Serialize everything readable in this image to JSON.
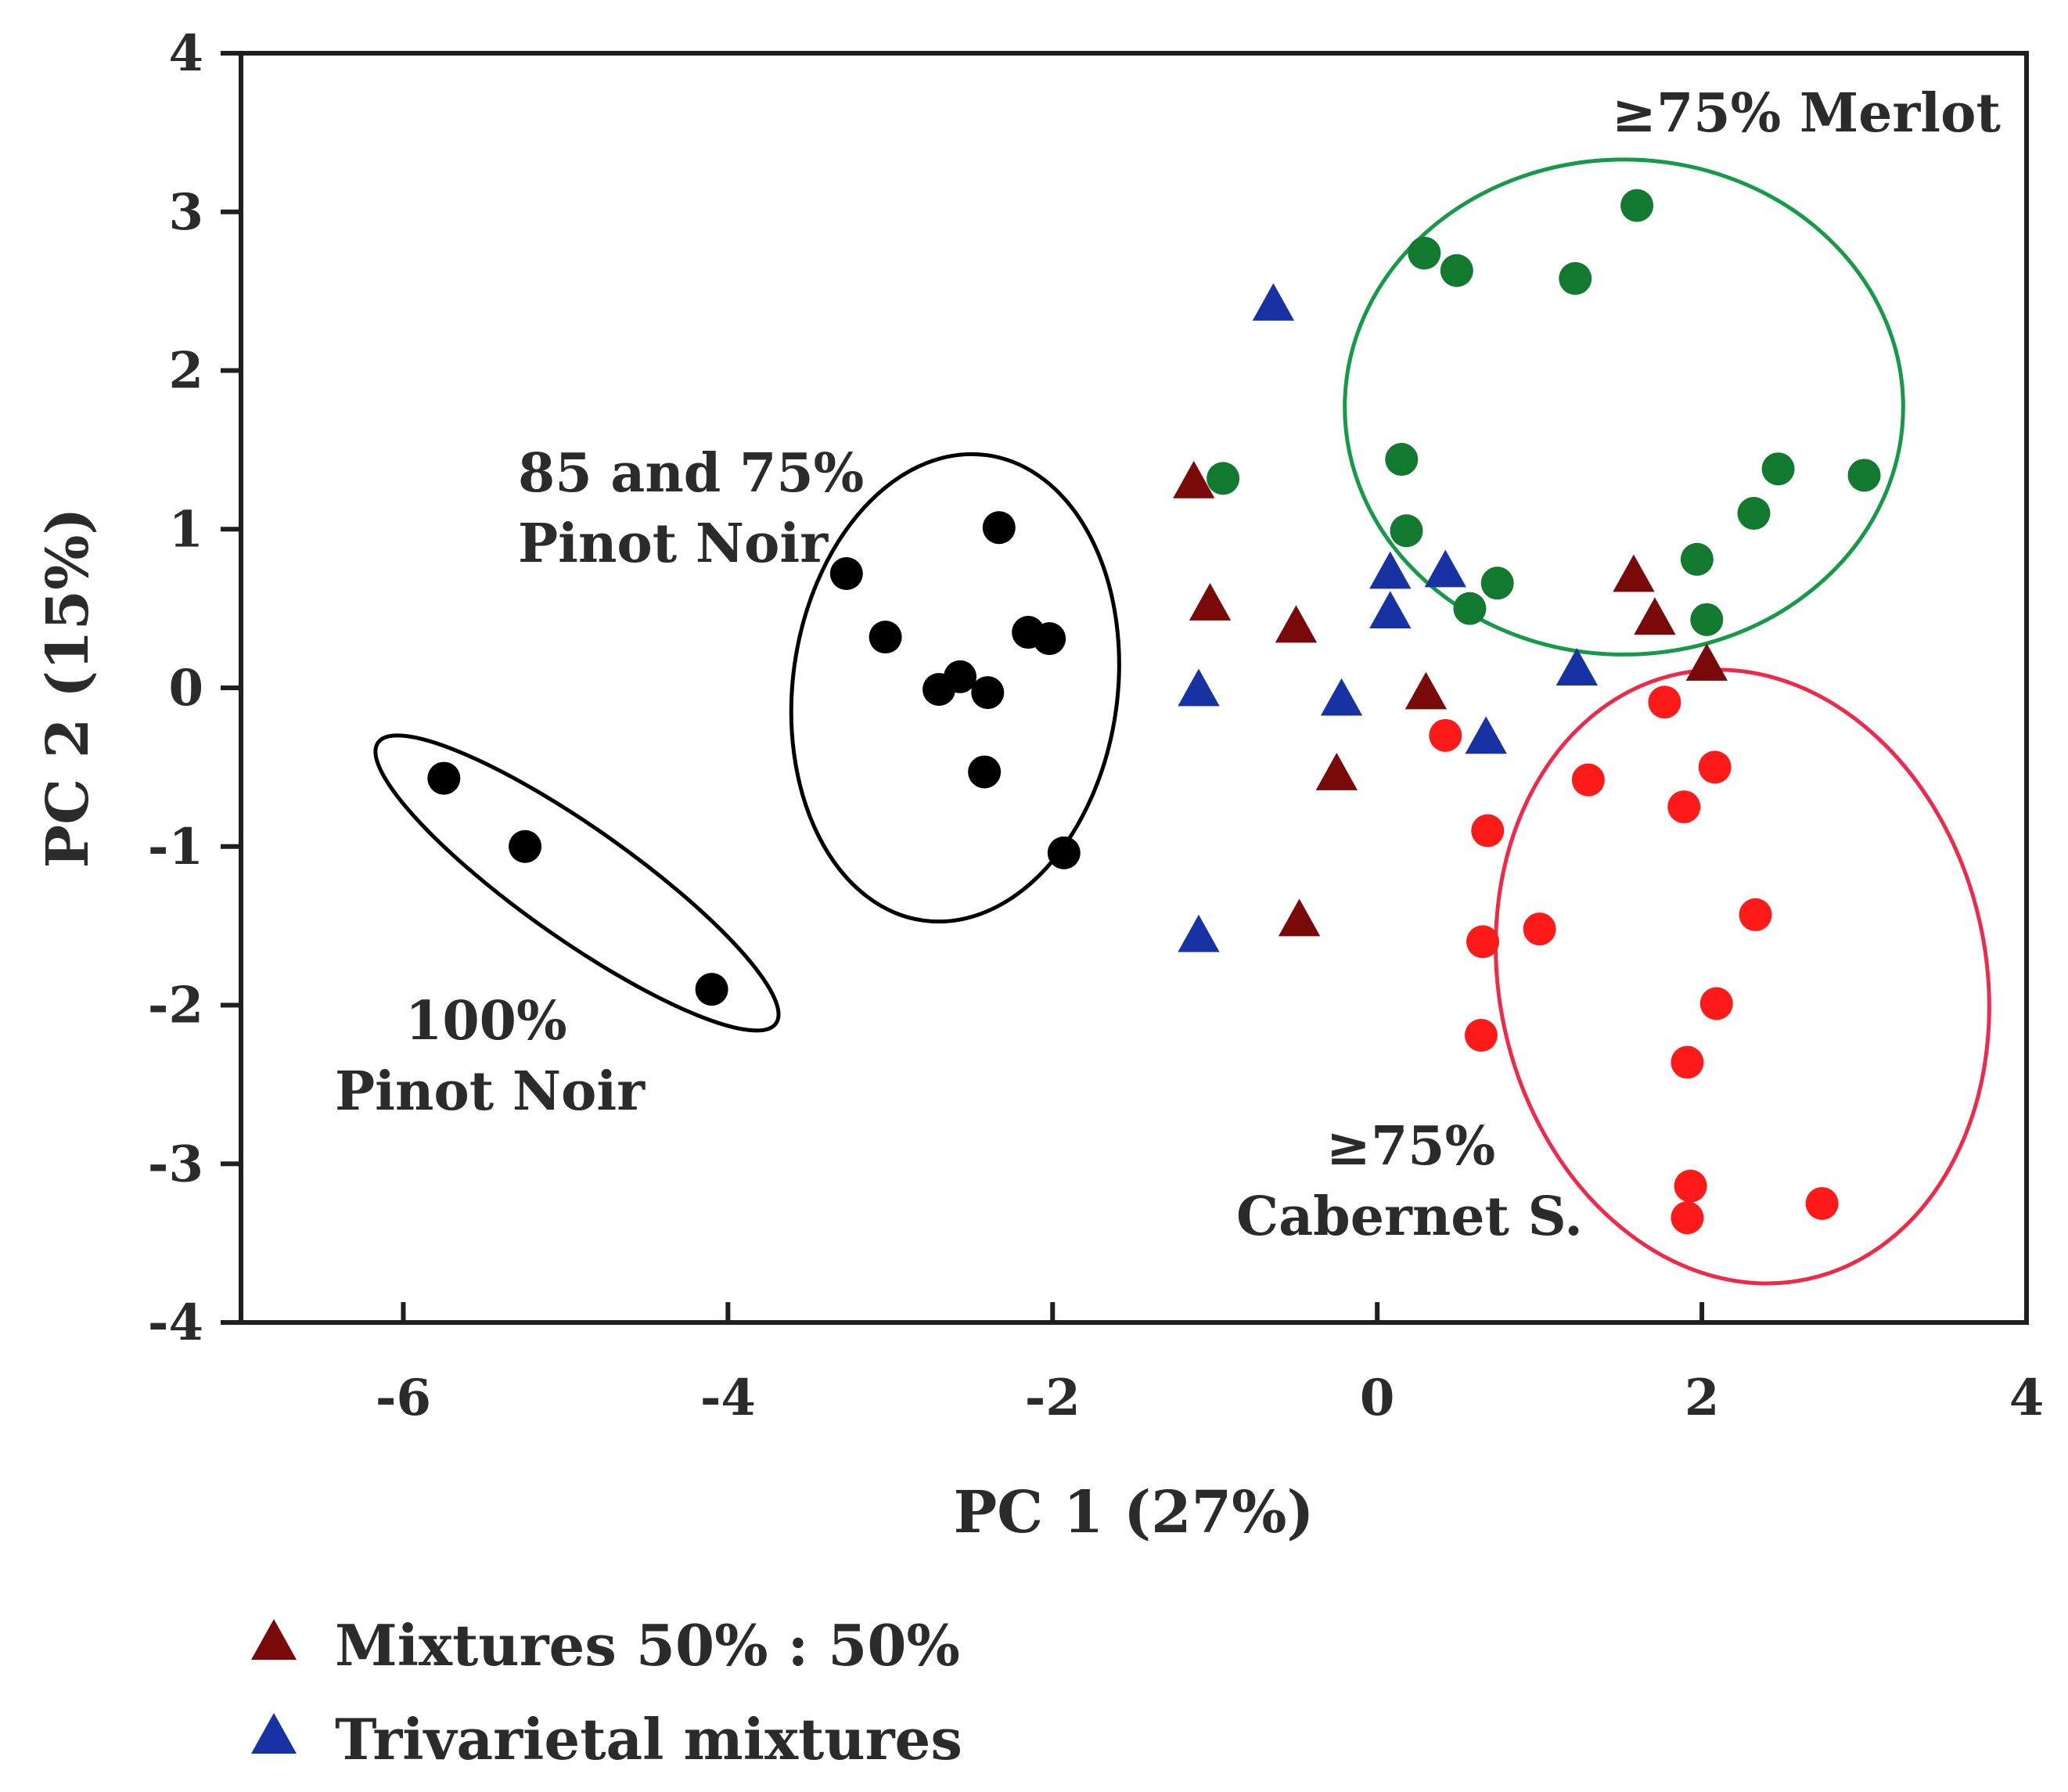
{
  "chart_data": {
    "type": "scatter",
    "xlabel": "PC 1 (27%)",
    "ylabel": "PC 2 (15%)",
    "xlim": [
      -7,
      4
    ],
    "ylim": [
      -4,
      4
    ],
    "xticks": [
      -6,
      -4,
      -2,
      0,
      2,
      4
    ],
    "yticks": [
      4,
      3,
      2,
      1,
      0,
      -1,
      -2,
      -3,
      -4
    ],
    "grid": false,
    "colors": {
      "pinot": "#000000",
      "merlot": "#127a2e",
      "cabernet": "#ff1a1a",
      "mix5050": "#7a0a0a",
      "trivarietal": "#1733a3",
      "ellipse_pinot": "#000000",
      "ellipse_merlot": "#159a48",
      "ellipse_cabernet": "#ee2a4a"
    },
    "series": [
      {
        "name": "100% Pinot Noir",
        "marker": "circle",
        "color": "#000000",
        "points": [
          [
            -5.75,
            -0.57
          ],
          [
            -5.25,
            -1.0
          ],
          [
            -4.1,
            -1.9
          ]
        ]
      },
      {
        "name": "85 and 75% Pinot Noir",
        "marker": "circle",
        "color": "#000000",
        "points": [
          [
            -3.27,
            0.72
          ],
          [
            -3.03,
            0.32
          ],
          [
            -2.7,
            -0.01
          ],
          [
            -2.57,
            0.07
          ],
          [
            -2.4,
            -0.03
          ],
          [
            -2.33,
            1.01
          ],
          [
            -2.42,
            -0.53
          ],
          [
            -2.15,
            0.35
          ],
          [
            -2.02,
            0.31
          ],
          [
            -1.93,
            -1.04
          ]
        ]
      },
      {
        "name": "≥75% Merlot",
        "marker": "circle",
        "color": "#127a2e",
        "points": [
          [
            -0.95,
            1.32
          ],
          [
            0.29,
            2.74
          ],
          [
            0.49,
            2.63
          ],
          [
            1.22,
            2.58
          ],
          [
            1.6,
            3.04
          ],
          [
            0.15,
            1.44
          ],
          [
            0.18,
            0.99
          ],
          [
            0.57,
            0.5
          ],
          [
            0.74,
            0.66
          ],
          [
            1.97,
            0.81
          ],
          [
            2.03,
            0.43
          ],
          [
            2.32,
            1.1
          ],
          [
            2.47,
            1.38
          ],
          [
            3.0,
            1.34
          ]
        ]
      },
      {
        "name": "≥75% Cabernet S.",
        "marker": "circle",
        "color": "#ff1a1a",
        "points": [
          [
            0.42,
            -0.3
          ],
          [
            0.68,
            -0.9
          ],
          [
            0.65,
            -1.6
          ],
          [
            0.64,
            -2.19
          ],
          [
            1.0,
            -1.52
          ],
          [
            1.3,
            -0.58
          ],
          [
            1.77,
            -0.09
          ],
          [
            1.89,
            -0.75
          ],
          [
            2.08,
            -0.5
          ],
          [
            2.33,
            -1.43
          ],
          [
            2.09,
            -1.99
          ],
          [
            1.91,
            -2.36
          ],
          [
            1.93,
            -3.14
          ],
          [
            1.91,
            -3.34
          ],
          [
            2.74,
            -3.25
          ]
        ]
      },
      {
        "name": "Mixtures 50% : 50%",
        "marker": "triangle",
        "color": "#7a0a0a",
        "points": [
          [
            -1.13,
            1.29
          ],
          [
            -1.03,
            0.52
          ],
          [
            -0.5,
            0.38
          ],
          [
            -0.25,
            -0.55
          ],
          [
            0.3,
            -0.04
          ],
          [
            -0.48,
            -1.47
          ],
          [
            1.58,
            0.7
          ],
          [
            1.71,
            0.43
          ],
          [
            2.03,
            0.14
          ]
        ]
      },
      {
        "name": "Trivarietal mixtures",
        "marker": "triangle",
        "color": "#1733a3",
        "points": [
          [
            -0.64,
            2.41
          ],
          [
            0.08,
            0.72
          ],
          [
            0.08,
            0.47
          ],
          [
            0.42,
            0.73
          ],
          [
            -0.22,
            -0.08
          ],
          [
            -1.1,
            -0.02
          ],
          [
            0.67,
            -0.32
          ],
          [
            1.23,
            0.11
          ],
          [
            -1.1,
            -1.57
          ]
        ]
      }
    ],
    "ellipses": [
      {
        "name": "100% Pinot Noir",
        "cx": -4.93,
        "cy": -1.23,
        "rx": 1.5,
        "ry": 0.35,
        "angle_deg": 35.2,
        "color": "#000000"
      },
      {
        "name": "85 and 75% Pinot Noir",
        "cx": -2.6,
        "cy": 0.0,
        "rx": 1.0,
        "ry": 1.48,
        "angle_deg": 7.8,
        "color": "#000000"
      },
      {
        "name": "≥75% Merlot",
        "cx": 1.52,
        "cy": 1.77,
        "rx": 1.72,
        "ry": 1.56,
        "angle_deg": 0,
        "color": "#159a48"
      },
      {
        "name": "≥75% Cabernet S.",
        "cx": 2.25,
        "cy": -1.82,
        "rx": 1.5,
        "ry": 1.95,
        "angle_deg": -12.1,
        "color": "#ee2a4a"
      }
    ],
    "annotations": {
      "merlot": "≥75% Merlot",
      "pinot_blend_line1": "85 and 75%",
      "pinot_blend_line2": "Pinot Noir",
      "pinot_pure_line1": "100%",
      "pinot_pure_line2": "Pinot Noir",
      "cabernet_line1": "≥75%",
      "cabernet_line2": "Cabernet S."
    },
    "legend": {
      "position": "bottom-left",
      "entries": [
        {
          "label": "Mixtures 50% : 50%",
          "marker": "triangle",
          "color": "#7a0a0a"
        },
        {
          "label": "Trivarietal mixtures",
          "marker": "triangle",
          "color": "#1733a3"
        }
      ]
    }
  }
}
